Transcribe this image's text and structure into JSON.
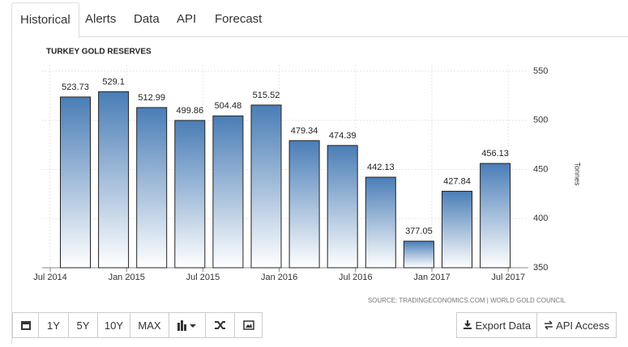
{
  "tabs": [
    "Historical",
    "Alerts",
    "Data",
    "API",
    "Forecast"
  ],
  "range_buttons": [
    "1Y",
    "5Y",
    "10Y",
    "MAX"
  ],
  "actions": [
    "Export Data",
    "API Access"
  ],
  "chart_data": {
    "type": "bar",
    "title": "TURKEY GOLD RESERVES",
    "source": "SOURCE: TRADINGECONOMICS.COM | WORLD GOLD COUNCIL",
    "y_label": "Tonnes",
    "categories": [
      null,
      null,
      null,
      null,
      null,
      null,
      null,
      null,
      null,
      null,
      null,
      null
    ],
    "values": [
      523.73,
      529.1,
      512.99,
      499.86,
      504.48,
      515.52,
      479.34,
      474.39,
      442.13,
      377.05,
      427.84,
      456.13
    ],
    "xticks": [
      "Jul 2014",
      "Jan 2015",
      "Jul 2015",
      "Jan 2016",
      "Jul 2016",
      "Jan 2017",
      "Jul 2017"
    ],
    "ylim": [
      350,
      550
    ],
    "yticks": [
      350,
      400,
      450,
      500,
      550
    ],
    "color": "#4a7db6",
    "grid": true
  }
}
